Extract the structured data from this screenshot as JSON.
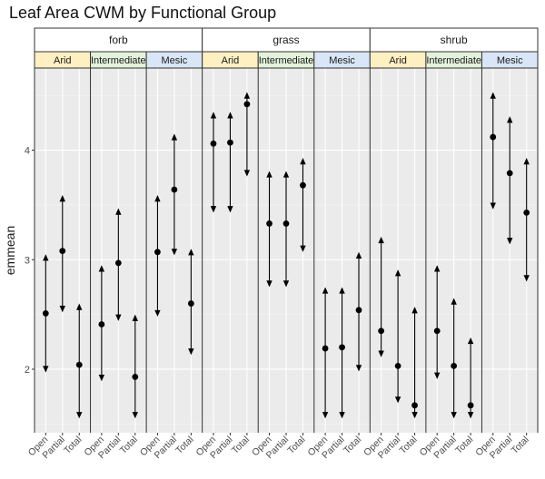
{
  "chart_data": {
    "type": "scatter",
    "title": "Leaf Area CWM by Functional Group",
    "ylabel": "emmean",
    "xlabel": "",
    "ylim": [
      1.42,
      4.75
    ],
    "yticks": [
      2,
      3,
      4
    ],
    "grid": true,
    "groups": [
      "forb",
      "grass",
      "shrub"
    ],
    "subgroups": [
      "Arid",
      "Intermediate",
      "Mesic"
    ],
    "categories": [
      "Open",
      "Partial",
      "Total"
    ],
    "subgroup_colors": {
      "Arid": "#FFF0C2",
      "Intermediate": "#E3F2DA",
      "Mesic": "#D8E6F7"
    },
    "panels": [
      {
        "group": "forb",
        "subgroup": "Arid",
        "points": [
          {
            "x": "Open",
            "emmean": 2.51,
            "lower": 1.97,
            "upper": 3.05
          },
          {
            "x": "Partial",
            "emmean": 3.08,
            "lower": 2.52,
            "upper": 3.59
          },
          {
            "x": "Total",
            "emmean": 2.04,
            "lower": 1.55,
            "upper": 2.6
          }
        ]
      },
      {
        "group": "forb",
        "subgroup": "Intermediate",
        "points": [
          {
            "x": "Open",
            "emmean": 2.41,
            "lower": 1.89,
            "upper": 2.95
          },
          {
            "x": "Partial",
            "emmean": 2.97,
            "lower": 2.44,
            "upper": 3.47
          },
          {
            "x": "Total",
            "emmean": 1.93,
            "lower": 1.55,
            "upper": 2.5
          }
        ]
      },
      {
        "group": "forb",
        "subgroup": "Mesic",
        "points": [
          {
            "x": "Open",
            "emmean": 3.07,
            "lower": 2.48,
            "upper": 3.59
          },
          {
            "x": "Partial",
            "emmean": 3.64,
            "lower": 3.04,
            "upper": 4.15
          },
          {
            "x": "Total",
            "emmean": 2.6,
            "lower": 2.13,
            "upper": 3.1
          }
        ]
      },
      {
        "group": "grass",
        "subgroup": "Arid",
        "points": [
          {
            "x": "Open",
            "emmean": 4.06,
            "lower": 3.43,
            "upper": 4.35
          },
          {
            "x": "Partial",
            "emmean": 4.07,
            "lower": 3.43,
            "upper": 4.35
          },
          {
            "x": "Total",
            "emmean": 4.42,
            "lower": 3.76,
            "upper": 4.53
          }
        ]
      },
      {
        "group": "grass",
        "subgroup": "Intermediate",
        "points": [
          {
            "x": "Open",
            "emmean": 3.33,
            "lower": 2.75,
            "upper": 3.81
          },
          {
            "x": "Partial",
            "emmean": 3.33,
            "lower": 2.75,
            "upper": 3.81
          },
          {
            "x": "Total",
            "emmean": 3.68,
            "lower": 3.07,
            "upper": 3.93
          }
        ]
      },
      {
        "group": "grass",
        "subgroup": "Mesic",
        "points": [
          {
            "x": "Open",
            "emmean": 2.19,
            "lower": 1.55,
            "upper": 2.75
          },
          {
            "x": "Partial",
            "emmean": 2.2,
            "lower": 1.55,
            "upper": 2.75
          },
          {
            "x": "Total",
            "emmean": 2.54,
            "lower": 1.98,
            "upper": 3.07
          }
        ]
      },
      {
        "group": "shrub",
        "subgroup": "Arid",
        "points": [
          {
            "x": "Open",
            "emmean": 2.35,
            "lower": 2.11,
            "upper": 3.21
          },
          {
            "x": "Partial",
            "emmean": 2.03,
            "lower": 1.69,
            "upper": 2.91
          },
          {
            "x": "Total",
            "emmean": 1.67,
            "lower": 1.55,
            "upper": 2.57
          }
        ]
      },
      {
        "group": "shrub",
        "subgroup": "Intermediate",
        "points": [
          {
            "x": "Open",
            "emmean": 2.35,
            "lower": 1.91,
            "upper": 2.95
          },
          {
            "x": "Partial",
            "emmean": 2.03,
            "lower": 1.55,
            "upper": 2.65
          },
          {
            "x": "Total",
            "emmean": 1.67,
            "lower": 1.55,
            "upper": 2.29
          }
        ]
      },
      {
        "group": "shrub",
        "subgroup": "Mesic",
        "points": [
          {
            "x": "Open",
            "emmean": 4.12,
            "lower": 3.46,
            "upper": 4.53
          },
          {
            "x": "Partial",
            "emmean": 3.79,
            "lower": 3.14,
            "upper": 4.31
          },
          {
            "x": "Total",
            "emmean": 3.43,
            "lower": 2.8,
            "upper": 3.93
          }
        ]
      }
    ]
  }
}
